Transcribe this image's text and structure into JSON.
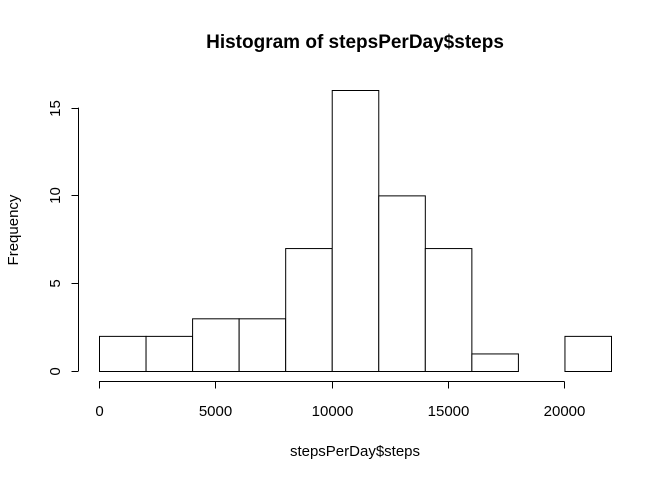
{
  "chart_data": {
    "type": "bar",
    "subtype": "histogram",
    "title": "Histogram of stepsPerDay$steps",
    "xlabel": "stepsPerDay$steps",
    "ylabel": "Frequency",
    "bins": [
      {
        "start": 0,
        "end": 2000,
        "count": 2
      },
      {
        "start": 2000,
        "end": 4000,
        "count": 2
      },
      {
        "start": 4000,
        "end": 6000,
        "count": 3
      },
      {
        "start": 6000,
        "end": 8000,
        "count": 3
      },
      {
        "start": 8000,
        "end": 10000,
        "count": 7
      },
      {
        "start": 10000,
        "end": 12000,
        "count": 16
      },
      {
        "start": 12000,
        "end": 14000,
        "count": 10
      },
      {
        "start": 14000,
        "end": 16000,
        "count": 7
      },
      {
        "start": 16000,
        "end": 18000,
        "count": 1
      },
      {
        "start": 18000,
        "end": 20000,
        "count": 0
      },
      {
        "start": 20000,
        "end": 22000,
        "count": 2
      }
    ],
    "xlim": [
      0,
      22000
    ],
    "ylim": [
      0,
      16
    ],
    "xticks": [
      "0",
      "5000",
      "10000",
      "15000",
      "20000"
    ],
    "xtick_values": [
      0,
      5000,
      10000,
      15000,
      20000
    ],
    "yticks": [
      "0",
      "5",
      "10",
      "15"
    ],
    "ytick_values": [
      0,
      5,
      10,
      15
    ],
    "grid": false,
    "legend": "none"
  }
}
